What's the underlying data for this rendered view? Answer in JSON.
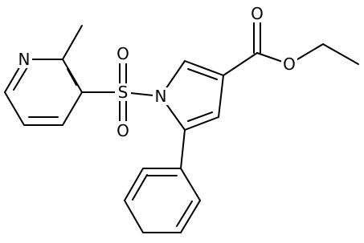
{
  "atoms": [
    {
      "label": "N"
    },
    {
      "label": "S"
    },
    {
      "label": "O"
    },
    {
      "label": "O"
    },
    {
      "label": "N"
    },
    {
      "label": "O"
    },
    {
      "label": "O"
    }
  ]
}
